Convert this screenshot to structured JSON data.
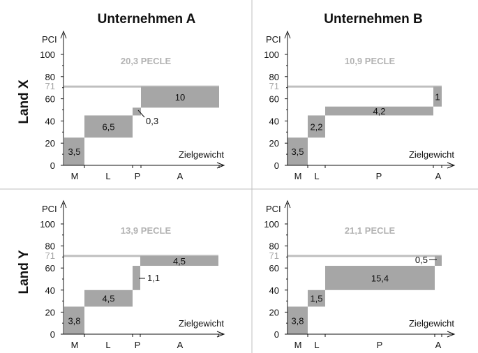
{
  "column_titles": [
    "Unternehmen A",
    "Unternehmen B"
  ],
  "row_titles": [
    "Land X",
    "Land Y"
  ],
  "colors": {
    "bar": "#a6a6a6",
    "reference_line": "#bfbfbf",
    "pecle_text": "#b3b3b3",
    "divider": "#bfbfbf"
  },
  "chart_data": [
    {
      "type": "bar",
      "column": "Unternehmen A",
      "row": "Land X",
      "ylabel": "PCI",
      "xlabel": "Zielgewicht",
      "ylim": [
        0,
        110
      ],
      "yticks": [
        0,
        20,
        40,
        60,
        80,
        100
      ],
      "reference_line": {
        "value": 71,
        "label": "71"
      },
      "summary": "20,3 PECLE",
      "categories": [
        {
          "label": "M",
          "width": 3.5,
          "value": 25,
          "bar_label": "3,5"
        },
        {
          "label": "L",
          "width": 6.5,
          "value": 45,
          "bar_label": "6,5"
        },
        {
          "label": "P",
          "width": 0.3,
          "value": 52,
          "bar_label": "0,3",
          "callout": true
        },
        {
          "label": "A",
          "width": 10,
          "value": 71,
          "bar_label": "10"
        }
      ]
    },
    {
      "type": "bar",
      "column": "Unternehmen B",
      "row": "Land X",
      "ylabel": "PCI",
      "xlabel": "Zielgewicht",
      "ylim": [
        0,
        110
      ],
      "yticks": [
        0,
        20,
        40,
        60,
        80,
        100
      ],
      "reference_line": {
        "value": 71,
        "label": "71"
      },
      "summary": "10,9 PECLE",
      "categories": [
        {
          "label": "M",
          "width": 3.5,
          "value": 25,
          "bar_label": "3,5"
        },
        {
          "label": "L",
          "width": 2.2,
          "value": 45,
          "bar_label": "2,2"
        },
        {
          "label": "P",
          "width": 4.2,
          "value": 53,
          "bar_label": "4,2"
        },
        {
          "label": "A",
          "width": 1,
          "value": 71,
          "bar_label": "1"
        }
      ]
    },
    {
      "type": "bar",
      "column": "Unternehmen A",
      "row": "Land Y",
      "ylabel": "PCI",
      "xlabel": "Zielgewicht",
      "ylim": [
        0,
        110
      ],
      "yticks": [
        0,
        20,
        40,
        60,
        80,
        100
      ],
      "reference_line": {
        "value": 71,
        "label": "71"
      },
      "summary": "13,9 PECLE",
      "categories": [
        {
          "label": "M",
          "width": 3.8,
          "value": 25,
          "bar_label": "3,8"
        },
        {
          "label": "L",
          "width": 4.5,
          "value": 40,
          "bar_label": "4,5"
        },
        {
          "label": "P",
          "width": 1.1,
          "value": 62,
          "bar_label": "1,1",
          "callout": true
        },
        {
          "label": "A",
          "width": 4.5,
          "value": 71,
          "bar_label": "4,5"
        }
      ]
    },
    {
      "type": "bar",
      "column": "Unternehmen B",
      "row": "Land Y",
      "ylabel": "PCI",
      "xlabel": "Zielgewicht",
      "ylim": [
        0,
        110
      ],
      "yticks": [
        0,
        20,
        40,
        60,
        80,
        100
      ],
      "reference_line": {
        "value": 71,
        "label": "71"
      },
      "summary": "21,1 PECLE",
      "categories": [
        {
          "label": "M",
          "width": 3.8,
          "value": 25,
          "bar_label": "3,8"
        },
        {
          "label": "L",
          "width": 1.5,
          "value": 40,
          "bar_label": "1,5"
        },
        {
          "label": "P",
          "width": 15.4,
          "value": 62,
          "bar_label": "15,4"
        },
        {
          "label": "A",
          "width": 0.5,
          "value": 71,
          "bar_label": "0,5",
          "callout": true
        }
      ]
    }
  ]
}
